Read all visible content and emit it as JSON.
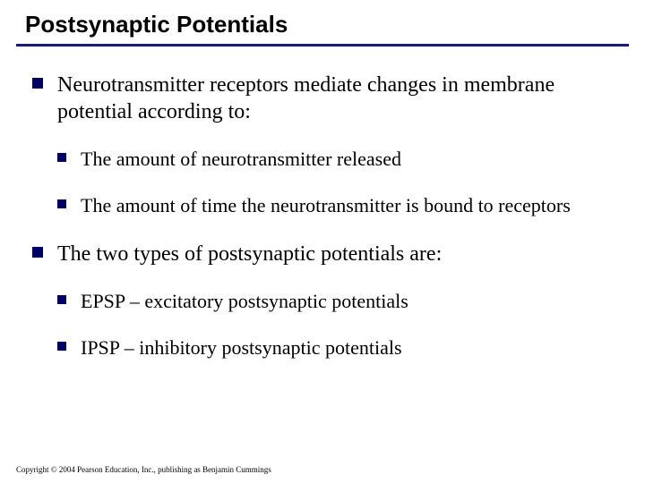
{
  "title": "Postsynaptic Potentials",
  "colors": {
    "rule": "#1a1a7a",
    "bullet": "#000066",
    "background": "#ffffff",
    "text": "#000000"
  },
  "typography": {
    "title_family": "Arial",
    "title_size_pt": 20,
    "title_weight": "bold",
    "body_family": "Times New Roman",
    "lvl1_size_pt": 18,
    "lvl2_size_pt": 16
  },
  "bullets": {
    "lvl1": [
      {
        "text": "Neurotransmitter receptors mediate changes in membrane potential according to:",
        "children": [
          "The amount of neurotransmitter released",
          "The amount of time the neurotransmitter is bound to receptors"
        ]
      },
      {
        "text": "The two types of postsynaptic potentials are:",
        "children": [
          "EPSP – excitatory postsynaptic potentials",
          "IPSP – inhibitory postsynaptic potentials"
        ]
      }
    ]
  },
  "copyright": "Copyright © 2004 Pearson Education, Inc., publishing as Benjamin Cummings"
}
